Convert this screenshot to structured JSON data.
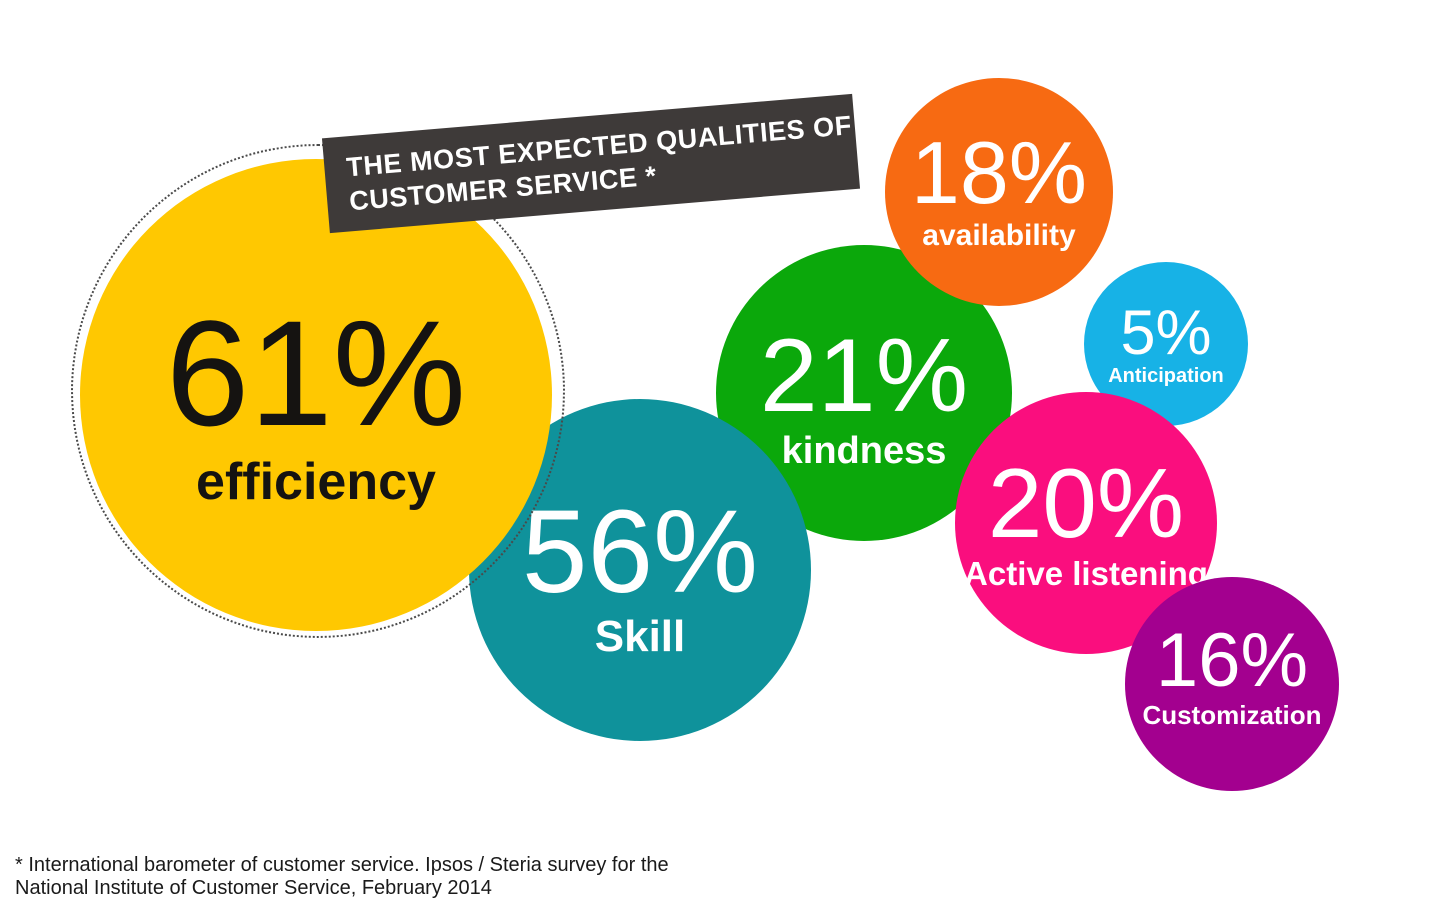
{
  "banner": {
    "line1": "THE MOST EXPECTED QUALITIES OF",
    "line2": "CUSTOMER SERVICE *",
    "bg_color": "#3E3A39",
    "text_color": "#FFFFFF"
  },
  "footnote": {
    "line1": "* International barometer of customer service. Ipsos / Steria survey for the",
    "line2": "National Institute of Customer Service, February 2014"
  },
  "chart_data": {
    "type": "bubble",
    "title": "THE MOST EXPECTED QUALITIES OF CUSTOMER SERVICE *",
    "legend_position": "none",
    "grid": false,
    "items": [
      {
        "label": "efficiency",
        "value": 61,
        "value_label": "61%",
        "color": "#FFC801",
        "text_color": "#151311",
        "decoration": "dotted-ring"
      },
      {
        "label": "Skill",
        "value": 56,
        "value_label": "56%",
        "color": "#0F929B",
        "text_color": "#FFFFFF"
      },
      {
        "label": "kindness",
        "value": 21,
        "value_label": "21%",
        "color": "#0BA80B",
        "text_color": "#FFFFFF"
      },
      {
        "label": "Active listening",
        "value": 20,
        "value_label": "20%",
        "color": "#FA0E7E",
        "text_color": "#FFFFFF"
      },
      {
        "label": "availability",
        "value": 18,
        "value_label": "18%",
        "color": "#F76A12",
        "text_color": "#FFFFFF"
      },
      {
        "label": "Customization",
        "value": 16,
        "value_label": "16%",
        "color": "#A3008F",
        "text_color": "#FFFFFF"
      },
      {
        "label": "Anticipation",
        "value": 5,
        "value_label": "5%",
        "color": "#17B2E6",
        "text_color": "#FFFFFF"
      }
    ],
    "footnote": "* International barometer of customer service. Ipsos / Steria survey for the National Institute of Customer Service, February 2014"
  }
}
